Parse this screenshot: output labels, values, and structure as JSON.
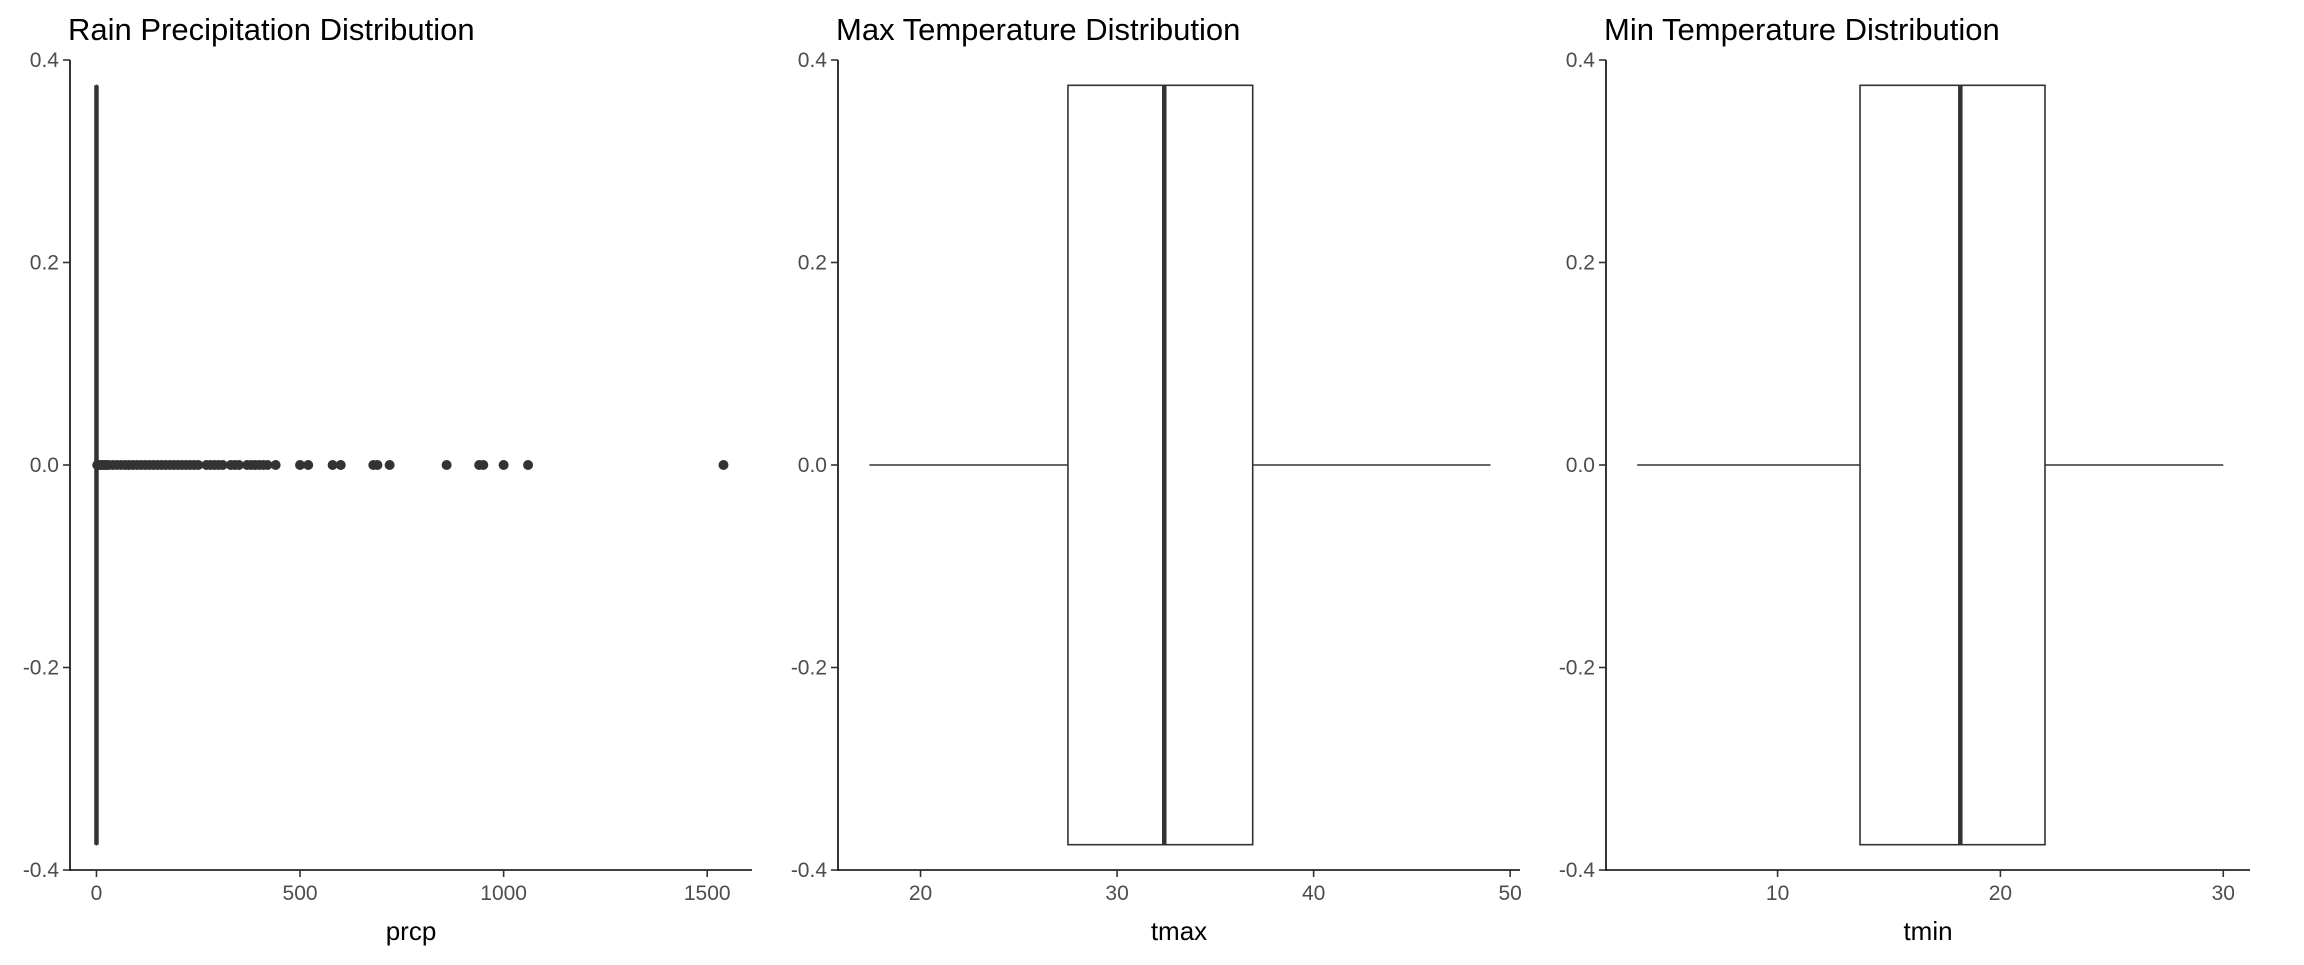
{
  "chart_data": [
    {
      "type": "boxplot",
      "title": "Rain Precipitation Distribution",
      "xlabel": "prcp",
      "ylabel": "",
      "xlim": [
        -65,
        1610
      ],
      "ylim": [
        -0.4,
        0.4
      ],
      "xticks": [
        0,
        500,
        1000,
        1500
      ],
      "yticks": [
        -0.4,
        -0.2,
        0.0,
        0.2,
        0.4
      ],
      "box": {
        "min": 0,
        "q1": 0,
        "median": 0,
        "q3": 0,
        "max": 0,
        "y_low": -0.375,
        "y_high": 0.375
      },
      "outliers": [
        2,
        5,
        10,
        15,
        20,
        25,
        30,
        40,
        50,
        60,
        70,
        80,
        90,
        100,
        110,
        120,
        130,
        140,
        150,
        160,
        170,
        180,
        190,
        200,
        210,
        220,
        230,
        240,
        250,
        270,
        280,
        290,
        300,
        310,
        330,
        340,
        350,
        370,
        380,
        390,
        400,
        410,
        420,
        440,
        500,
        520,
        580,
        600,
        680,
        690,
        720,
        860,
        940,
        950,
        1000,
        1060,
        1540
      ]
    },
    {
      "type": "boxplot",
      "title": "Max Temperature Distribution",
      "xlabel": "tmax",
      "ylabel": "",
      "xlim": [
        15.8,
        50.5
      ],
      "ylim": [
        -0.4,
        0.4
      ],
      "xticks": [
        20,
        30,
        40,
        50
      ],
      "yticks": [
        -0.4,
        -0.2,
        0.0,
        0.2,
        0.4
      ],
      "box": {
        "min": 17.4,
        "q1": 27.5,
        "median": 32.4,
        "q3": 36.9,
        "max": 49.0,
        "y_low": -0.375,
        "y_high": 0.375
      },
      "outliers": []
    },
    {
      "type": "boxplot",
      "title": "Min Temperature Distribution",
      "xlabel": "tmin",
      "ylabel": "",
      "xlim": [
        2.3,
        31.2
      ],
      "ylim": [
        -0.4,
        0.4
      ],
      "xticks": [
        10,
        20,
        30
      ],
      "yticks": [
        -0.4,
        -0.2,
        0.0,
        0.2,
        0.4
      ],
      "box": {
        "min": 3.7,
        "q1": 13.7,
        "median": 18.2,
        "q3": 22.0,
        "max": 30.0,
        "y_low": -0.375,
        "y_high": 0.375
      },
      "outliers": []
    }
  ]
}
